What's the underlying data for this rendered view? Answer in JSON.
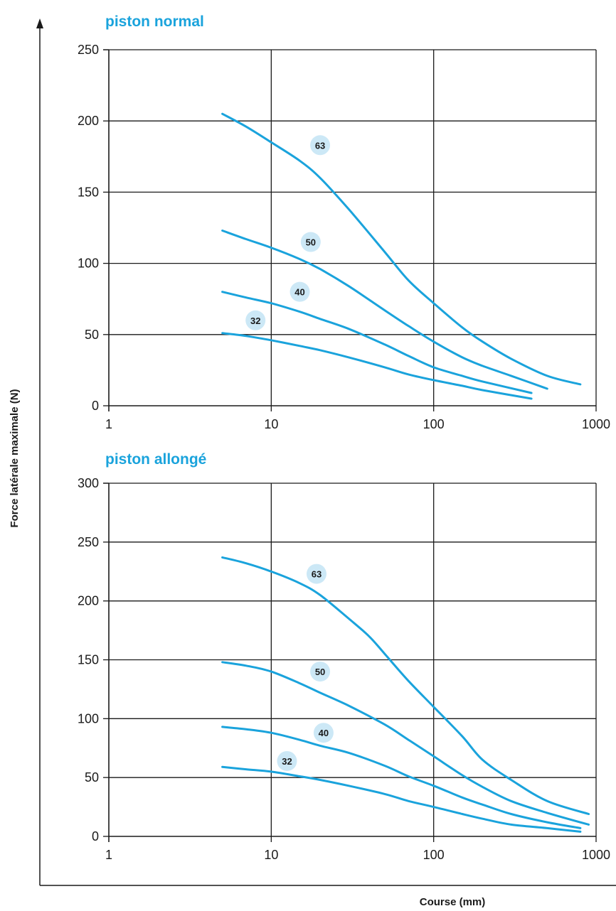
{
  "y_axis_label": "Force latérale maximale (N)",
  "x_axis_label": "Course  (mm)",
  "colors": {
    "curve": "#1aa3dc",
    "badge": "#cce8f6",
    "title": "#1aa3dc",
    "grid": "#1a1a1a"
  },
  "chart_data": [
    {
      "type": "line",
      "title": "piston normal",
      "xscale": "log",
      "xlim": [
        1,
        1000
      ],
      "ylim": [
        0,
        250
      ],
      "x_ticks": [
        "1",
        "10",
        "100",
        "1000"
      ],
      "y_ticks": [
        "0",
        "50",
        "100",
        "150",
        "200",
        "250"
      ],
      "grid": true,
      "series": [
        {
          "name": "63",
          "x": [
            5,
            7,
            10,
            15,
            20,
            30,
            50,
            70,
            100,
            150,
            200,
            300,
            500,
            800
          ],
          "y": [
            205,
            196,
            185,
            172,
            160,
            138,
            108,
            88,
            72,
            55,
            45,
            33,
            21,
            15
          ]
        },
        {
          "name": "50",
          "x": [
            5,
            7,
            10,
            15,
            20,
            30,
            50,
            70,
            100,
            150,
            200,
            300,
            500
          ],
          "y": [
            123,
            117,
            111,
            103,
            96,
            84,
            67,
            56,
            45,
            34,
            28,
            21,
            12
          ]
        },
        {
          "name": "40",
          "x": [
            5,
            7,
            10,
            15,
            20,
            30,
            50,
            70,
            100,
            150,
            200,
            400
          ],
          "y": [
            80,
            76,
            72,
            66,
            61,
            54,
            43,
            35,
            27,
            21,
            17,
            9
          ]
        },
        {
          "name": "32",
          "x": [
            5,
            7,
            10,
            15,
            20,
            30,
            50,
            70,
            100,
            150,
            200,
            400
          ],
          "y": [
            51,
            49,
            46,
            42,
            39,
            34,
            27,
            22,
            18,
            14,
            11,
            5
          ]
        }
      ],
      "labels": [
        {
          "text": "63",
          "x": 20,
          "y": 183
        },
        {
          "text": "50",
          "x": 17.5,
          "y": 115
        },
        {
          "text": "40",
          "x": 15,
          "y": 80
        },
        {
          "text": "32",
          "x": 8,
          "y": 60
        }
      ]
    },
    {
      "type": "line",
      "title": "piston allongé",
      "xscale": "log",
      "xlim": [
        1,
        1000
      ],
      "ylim": [
        0,
        300
      ],
      "x_ticks": [
        "1",
        "10",
        "100",
        "1000"
      ],
      "y_ticks": [
        "0",
        "50",
        "100",
        "150",
        "200",
        "250",
        "300"
      ],
      "grid": true,
      "series": [
        {
          "name": "63",
          "x": [
            5,
            7,
            10,
            15,
            20,
            30,
            40,
            50,
            70,
            100,
            150,
            200,
            300,
            500,
            900
          ],
          "y": [
            237,
            232,
            225,
            215,
            205,
            185,
            170,
            155,
            132,
            110,
            85,
            65,
            48,
            30,
            19
          ]
        },
        {
          "name": "50",
          "x": [
            5,
            7,
            10,
            15,
            20,
            30,
            50,
            70,
            100,
            150,
            200,
            300,
            500,
            900
          ],
          "y": [
            148,
            145,
            140,
            130,
            122,
            111,
            95,
            82,
            68,
            52,
            42,
            30,
            20,
            10
          ]
        },
        {
          "name": "40",
          "x": [
            5,
            7,
            10,
            15,
            20,
            30,
            50,
            70,
            100,
            150,
            200,
            300,
            500,
            800
          ],
          "y": [
            93,
            91,
            88,
            82,
            77,
            71,
            60,
            51,
            43,
            33,
            27,
            19,
            12,
            7
          ]
        },
        {
          "name": "32",
          "x": [
            5,
            7,
            10,
            15,
            20,
            30,
            50,
            70,
            100,
            150,
            200,
            300,
            500,
            800
          ],
          "y": [
            59,
            57,
            55,
            51,
            48,
            43,
            36,
            30,
            25,
            19,
            15,
            10,
            7,
            4
          ]
        }
      ],
      "labels": [
        {
          "text": "63",
          "x": 19,
          "y": 223
        },
        {
          "text": "50",
          "x": 20,
          "y": 140
        },
        {
          "text": "40",
          "x": 21,
          "y": 88
        },
        {
          "text": "32",
          "x": 12.5,
          "y": 64
        }
      ]
    }
  ]
}
